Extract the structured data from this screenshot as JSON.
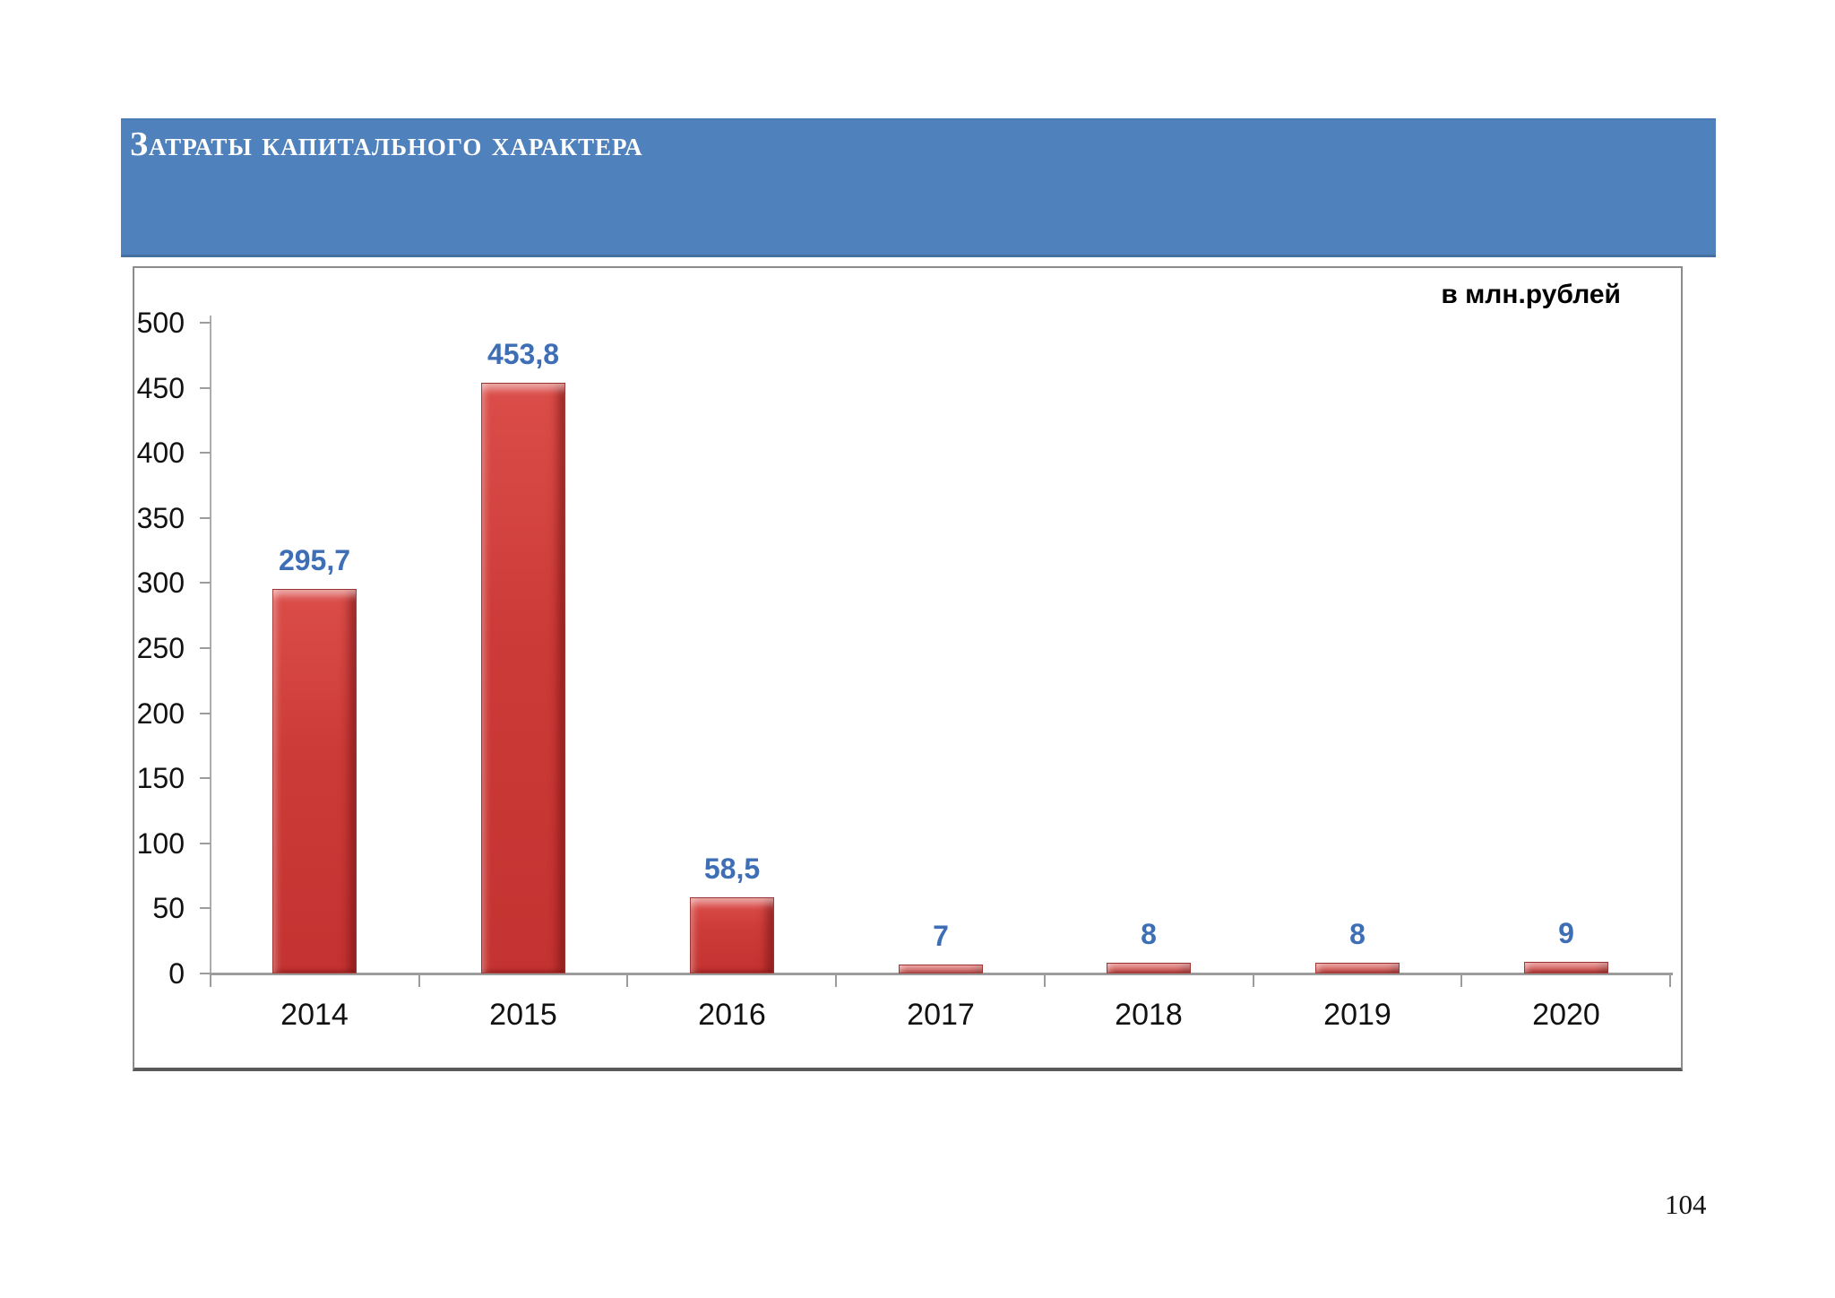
{
  "header": {
    "title": "Затраты капитального характера",
    "banner_color": "#4f81bd",
    "title_text_color": "#ffffff"
  },
  "chart": {
    "units_label": "в млн.рублей"
  },
  "footer": {
    "page_number": "104"
  },
  "chart_data": {
    "type": "bar",
    "title": "Затраты капитального характера",
    "categories": [
      "2014",
      "2015",
      "2016",
      "2017",
      "2018",
      "2019",
      "2020"
    ],
    "values": [
      295.7,
      453.8,
      58.5,
      7,
      8,
      8,
      9
    ],
    "value_labels": [
      "295,7",
      "453,8",
      "58,5",
      "7",
      "8",
      "8",
      "9"
    ],
    "units": "в млн.рублей",
    "xlabel": "",
    "ylabel": "",
    "ylim": [
      0,
      500
    ],
    "ytick_step": 50,
    "ytick_labels": [
      "500",
      "450",
      "400",
      "350",
      "300",
      "250",
      "200",
      "150",
      "100",
      "50",
      "0"
    ],
    "grid": false,
    "legend": false,
    "bar_color": "#cd3b38",
    "bar_highlight_color": "#e9706b",
    "bar_shadow_color": "#a02c2a",
    "value_label_color": "#3d6eb6",
    "axis_color": "#9c9c9c"
  }
}
